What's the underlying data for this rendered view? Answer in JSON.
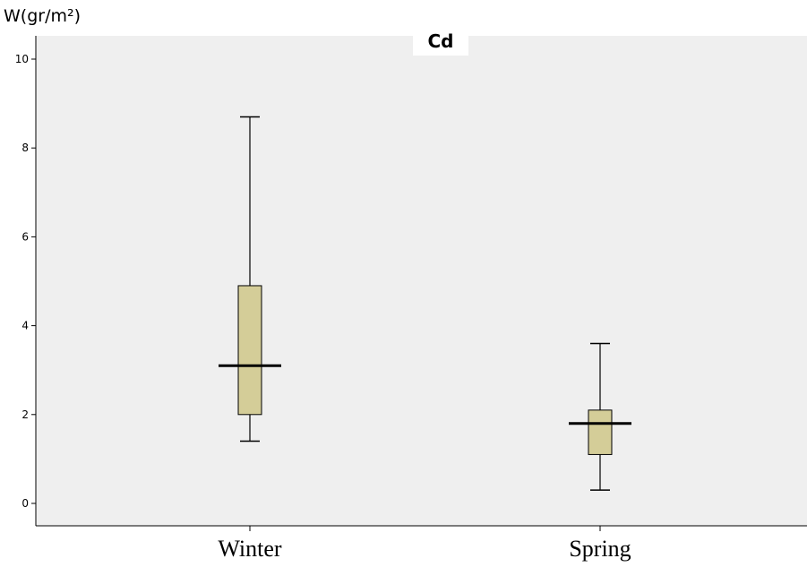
{
  "chart_data": {
    "type": "box",
    "title": "Cd",
    "ylabel": "W(gr/m²)",
    "xlabel": "",
    "ylim": [
      -0.5,
      10.5
    ],
    "yticks": [
      0,
      2,
      4,
      6,
      8,
      10
    ],
    "yticklabels": [
      "0",
      "2",
      "4",
      "6",
      "8",
      "10"
    ],
    "grid": false,
    "categories": [
      "Winter",
      "Spring"
    ],
    "boxes": [
      {
        "category": "Winter",
        "min": 1.4,
        "q1": 2.0,
        "median": 3.1,
        "q3": 4.9,
        "max": 8.7
      },
      {
        "category": "Spring",
        "min": 0.3,
        "q1": 1.1,
        "median": 1.8,
        "q3": 2.1,
        "max": 3.6
      }
    ],
    "colors": {
      "plot_background": "#efefef",
      "box_fill": "#d4cd98",
      "line": "#000000"
    }
  }
}
